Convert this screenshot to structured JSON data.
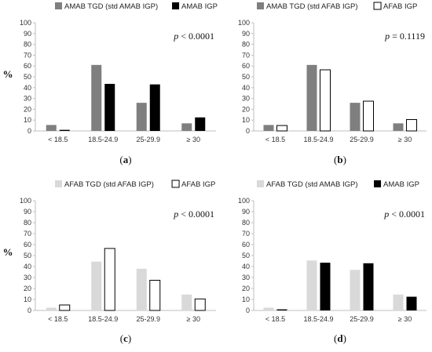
{
  "colors": {
    "dark_gray": "#7f7f7f",
    "black": "#000000",
    "white": "#ffffff",
    "light_gray": "#d9d9d9",
    "axis": "#bfbfbf",
    "grid": "#d9d9d9",
    "outline": "#000000"
  },
  "ylabel": "%",
  "chart_data": [
    {
      "type": "bar",
      "panel": "a",
      "p_value": "< 0.0001",
      "categories": [
        "< 18.5",
        "18.5-24.9",
        "25-29.9",
        "≥ 30"
      ],
      "ylim": [
        0,
        100
      ],
      "yticks": [
        0,
        10,
        20,
        30,
        40,
        50,
        60,
        70,
        80,
        90,
        100
      ],
      "grid": false,
      "legend": "top-left",
      "series": [
        {
          "name": "AMAB TGD (std AMAB IGP)",
          "values": [
            5.5,
            61,
            26,
            7
          ],
          "color": "#7f7f7f"
        },
        {
          "name": "AMAB IGP",
          "values": [
            1,
            43.5,
            43,
            12.5
          ],
          "color": "#000000"
        }
      ]
    },
    {
      "type": "bar",
      "panel": "b",
      "p_value": "= 0.1119",
      "categories": [
        "< 18.5",
        "18.5-24.9",
        "25-29.9",
        "≥ 30"
      ],
      "ylim": [
        0,
        100
      ],
      "yticks": [
        0,
        10,
        20,
        30,
        40,
        50,
        60,
        70,
        80,
        90,
        100
      ],
      "grid": false,
      "legend": "top-left",
      "series": [
        {
          "name": "AMAB TGD (std AFAB IGP)",
          "values": [
            5.5,
            61,
            26,
            7
          ],
          "color": "#7f7f7f"
        },
        {
          "name": "AFAB IGP",
          "values": [
            5,
            56.5,
            27.5,
            10.5
          ],
          "color": "#ffffff"
        }
      ]
    },
    {
      "type": "bar",
      "panel": "c",
      "p_value": "< 0.0001",
      "categories": [
        "< 18.5",
        "18.5-24.9",
        "25-29.9",
        "≥ 30"
      ],
      "ylim": [
        0,
        100
      ],
      "yticks": [
        0,
        10,
        20,
        30,
        40,
        50,
        60,
        70,
        80,
        90,
        100
      ],
      "grid": false,
      "legend": "top-left",
      "series": [
        {
          "name": "AFAB TGD (std AFAB IGP)",
          "values": [
            2.5,
            44.5,
            38,
            14.5
          ],
          "color": "#d9d9d9"
        },
        {
          "name": "AFAB IGP",
          "values": [
            5,
            56.5,
            27.5,
            10.5
          ],
          "color": "#ffffff"
        }
      ]
    },
    {
      "type": "bar",
      "panel": "d",
      "p_value": "< 0.0001",
      "categories": [
        "< 18.5",
        "18.5-24.9",
        "25-29.9",
        "≥ 30"
      ],
      "ylim": [
        0,
        100
      ],
      "yticks": [
        0,
        10,
        20,
        30,
        40,
        50,
        60,
        70,
        80,
        90,
        100
      ],
      "grid": false,
      "legend": "top-left",
      "series": [
        {
          "name": "AFAB TGD (std AMAB IGP)",
          "values": [
            2.5,
            45.5,
            37,
            14.5
          ],
          "color": "#d9d9d9"
        },
        {
          "name": "AMAB IGP",
          "values": [
            1,
            43.5,
            43,
            12.5
          ],
          "color": "#000000"
        }
      ]
    }
  ]
}
